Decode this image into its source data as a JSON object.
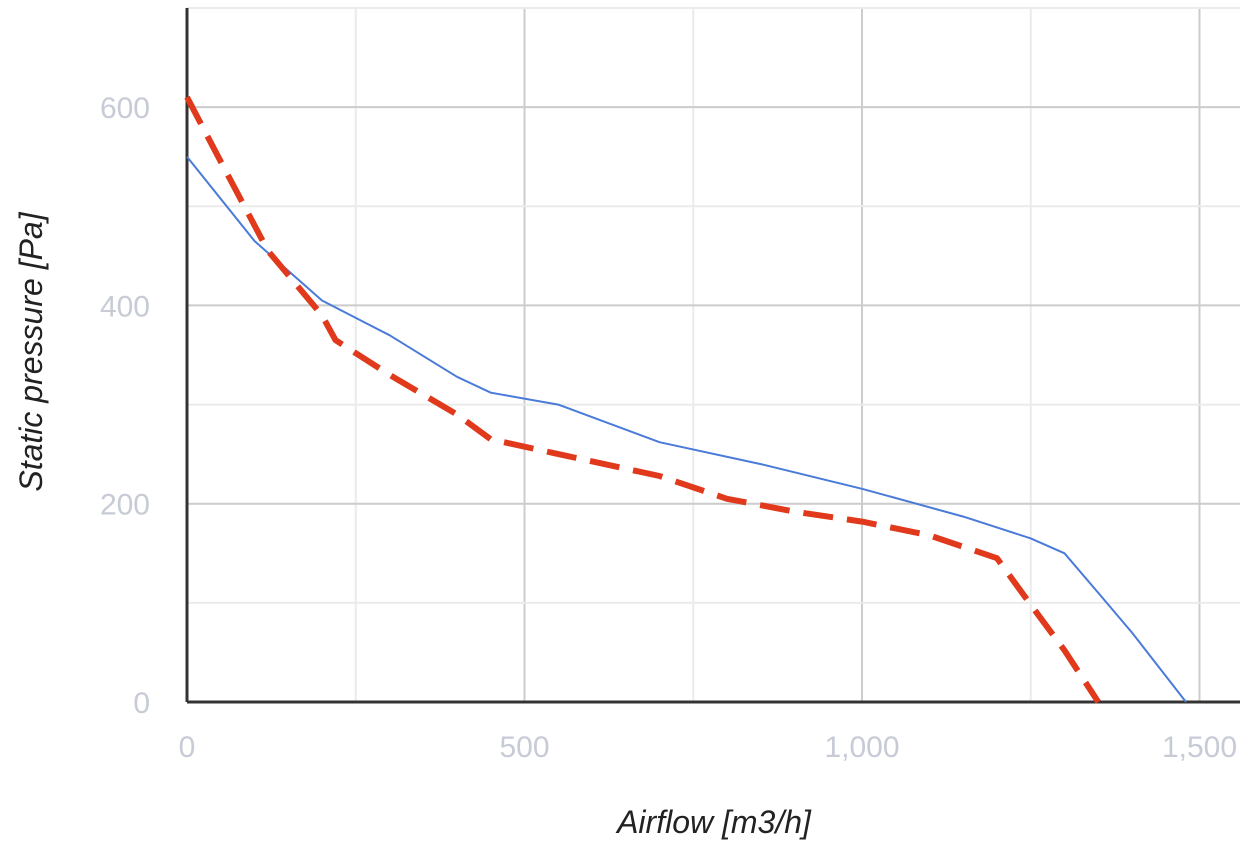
{
  "chart_data": {
    "type": "line",
    "title": "",
    "xlabel": "Airflow [m3/h]",
    "ylabel": "Static pressure [Pa]",
    "xlim": [
      0,
      1560
    ],
    "ylim": [
      0,
      700
    ],
    "x_ticks": [
      0,
      500,
      1000,
      1500
    ],
    "x_tick_labels": [
      "0",
      "500",
      "1,000",
      "1,500"
    ],
    "y_ticks": [
      0,
      200,
      400,
      600
    ],
    "y_tick_labels": [
      "0",
      "200",
      "400",
      "600"
    ],
    "grid": true,
    "legend": "none",
    "series": [
      {
        "color": "#4a7bd8",
        "style": "solid",
        "points": [
          [
            0,
            550
          ],
          [
            100,
            465
          ],
          [
            200,
            405
          ],
          [
            300,
            370
          ],
          [
            400,
            328
          ],
          [
            450,
            312
          ],
          [
            550,
            300
          ],
          [
            700,
            262
          ],
          [
            850,
            240
          ],
          [
            1000,
            215
          ],
          [
            1150,
            187
          ],
          [
            1250,
            165
          ],
          [
            1300,
            150
          ],
          [
            1350,
            110
          ],
          [
            1400,
            70
          ],
          [
            1480,
            0
          ]
        ]
      },
      {
        "color": "#e0391b",
        "style": "dashed",
        "points": [
          [
            0,
            610
          ],
          [
            50,
            545
          ],
          [
            120,
            455
          ],
          [
            200,
            390
          ],
          [
            220,
            365
          ],
          [
            300,
            330
          ],
          [
            400,
            290
          ],
          [
            450,
            265
          ],
          [
            550,
            250
          ],
          [
            700,
            228
          ],
          [
            800,
            205
          ],
          [
            900,
            192
          ],
          [
            1000,
            182
          ],
          [
            1100,
            168
          ],
          [
            1200,
            145
          ],
          [
            1250,
            98
          ],
          [
            1300,
            52
          ],
          [
            1350,
            0
          ]
        ]
      }
    ]
  }
}
